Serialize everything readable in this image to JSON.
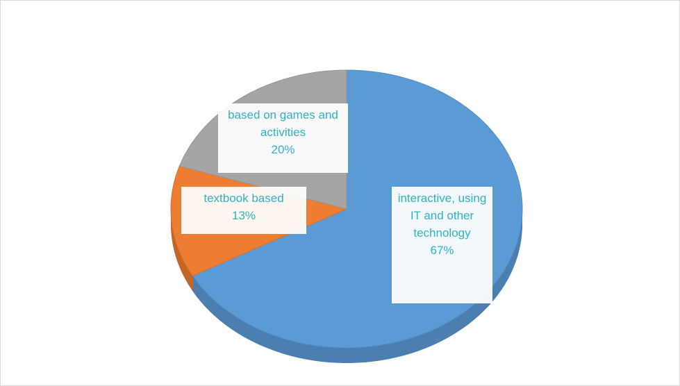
{
  "chart_data": {
    "type": "pie",
    "categories": [
      "interactive, using IT and other technology",
      "textbook based",
      "based on games and activities"
    ],
    "values": [
      67,
      13,
      20
    ],
    "value_labels": [
      "67%",
      "13%",
      "20%"
    ],
    "colors": [
      "#5b9bd5",
      "#ed7d31",
      "#a5a5a5"
    ]
  }
}
